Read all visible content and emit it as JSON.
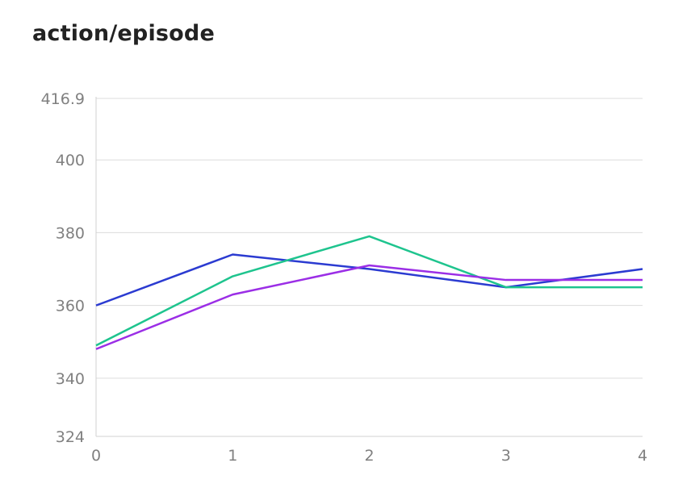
{
  "chart_data": {
    "type": "line",
    "title": "action/episode",
    "xlabel": "",
    "ylabel": "",
    "x": [
      0,
      1,
      2,
      3,
      4
    ],
    "x_tick_labels": [
      "0",
      "1",
      "2",
      "3",
      "4"
    ],
    "y_tick_values": [
      324,
      340,
      360,
      380,
      400,
      416.9
    ],
    "y_tick_labels": [
      "324",
      "340",
      "360",
      "380",
      "400",
      "416.9"
    ],
    "xlim": [
      0,
      4
    ],
    "ylim": [
      324,
      416.9
    ],
    "grid": true,
    "legend": false,
    "series": [
      {
        "color": "#2b3bd1",
        "values": [
          360,
          374,
          370,
          365,
          370
        ]
      },
      {
        "color": "#1ec48e",
        "values": [
          349,
          368,
          379,
          365,
          365
        ]
      },
      {
        "color": "#9b2ee6",
        "values": [
          348,
          363,
          371,
          367,
          367
        ]
      }
    ]
  }
}
